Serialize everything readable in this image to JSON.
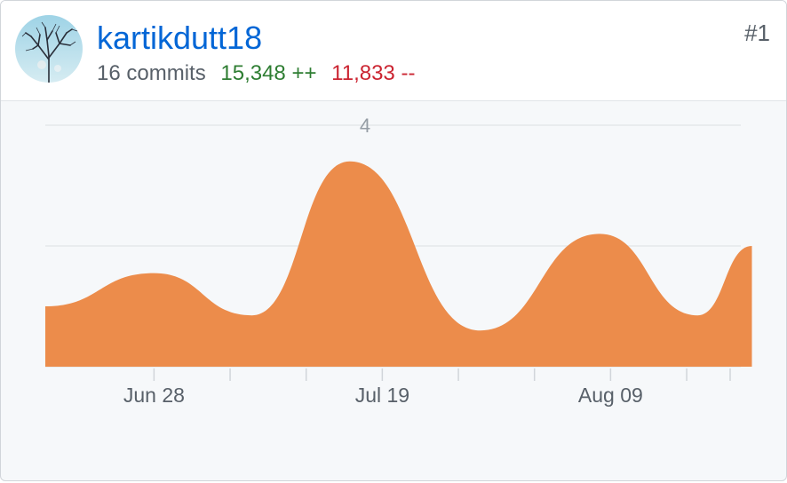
{
  "contributor": {
    "username": "kartikdutt18",
    "commits": "16 commits",
    "additions": "15,348 ++",
    "deletions": "11,833 --",
    "rank": "#1"
  },
  "colors": {
    "area": "#ec8c4b",
    "link": "#0366d6",
    "additions": "#2e7d32",
    "deletions": "#cb2431",
    "grid": "#e1e4e8"
  },
  "chart_data": {
    "type": "area",
    "x": [
      "2020-06-18",
      "2020-06-28",
      "2020-07-07",
      "2020-07-16",
      "2020-07-28",
      "2020-08-08",
      "2020-08-17",
      "2020-08-22"
    ],
    "values": [
      1.0,
      1.55,
      0.85,
      3.4,
      0.6,
      2.2,
      0.85,
      2.0
    ],
    "ylim": [
      0,
      4
    ],
    "y_ticks": [
      {
        "value": 4,
        "label": "4"
      },
      {
        "value": 2,
        "label": ""
      },
      {
        "value": 0,
        "label": ""
      }
    ],
    "x_tick_labels": [
      {
        "date": "2020-06-28",
        "label": "Jun 28"
      },
      {
        "date": "2020-07-19",
        "label": "Jul 19"
      },
      {
        "date": "2020-08-09",
        "label": "Aug 09"
      }
    ],
    "x_minor_ticks": [
      "2020-06-28",
      "2020-07-05",
      "2020-07-12",
      "2020-07-19",
      "2020-07-26",
      "2020-08-02",
      "2020-08-09",
      "2020-08-16",
      "2020-08-23"
    ],
    "grid": true,
    "legend": "none"
  }
}
